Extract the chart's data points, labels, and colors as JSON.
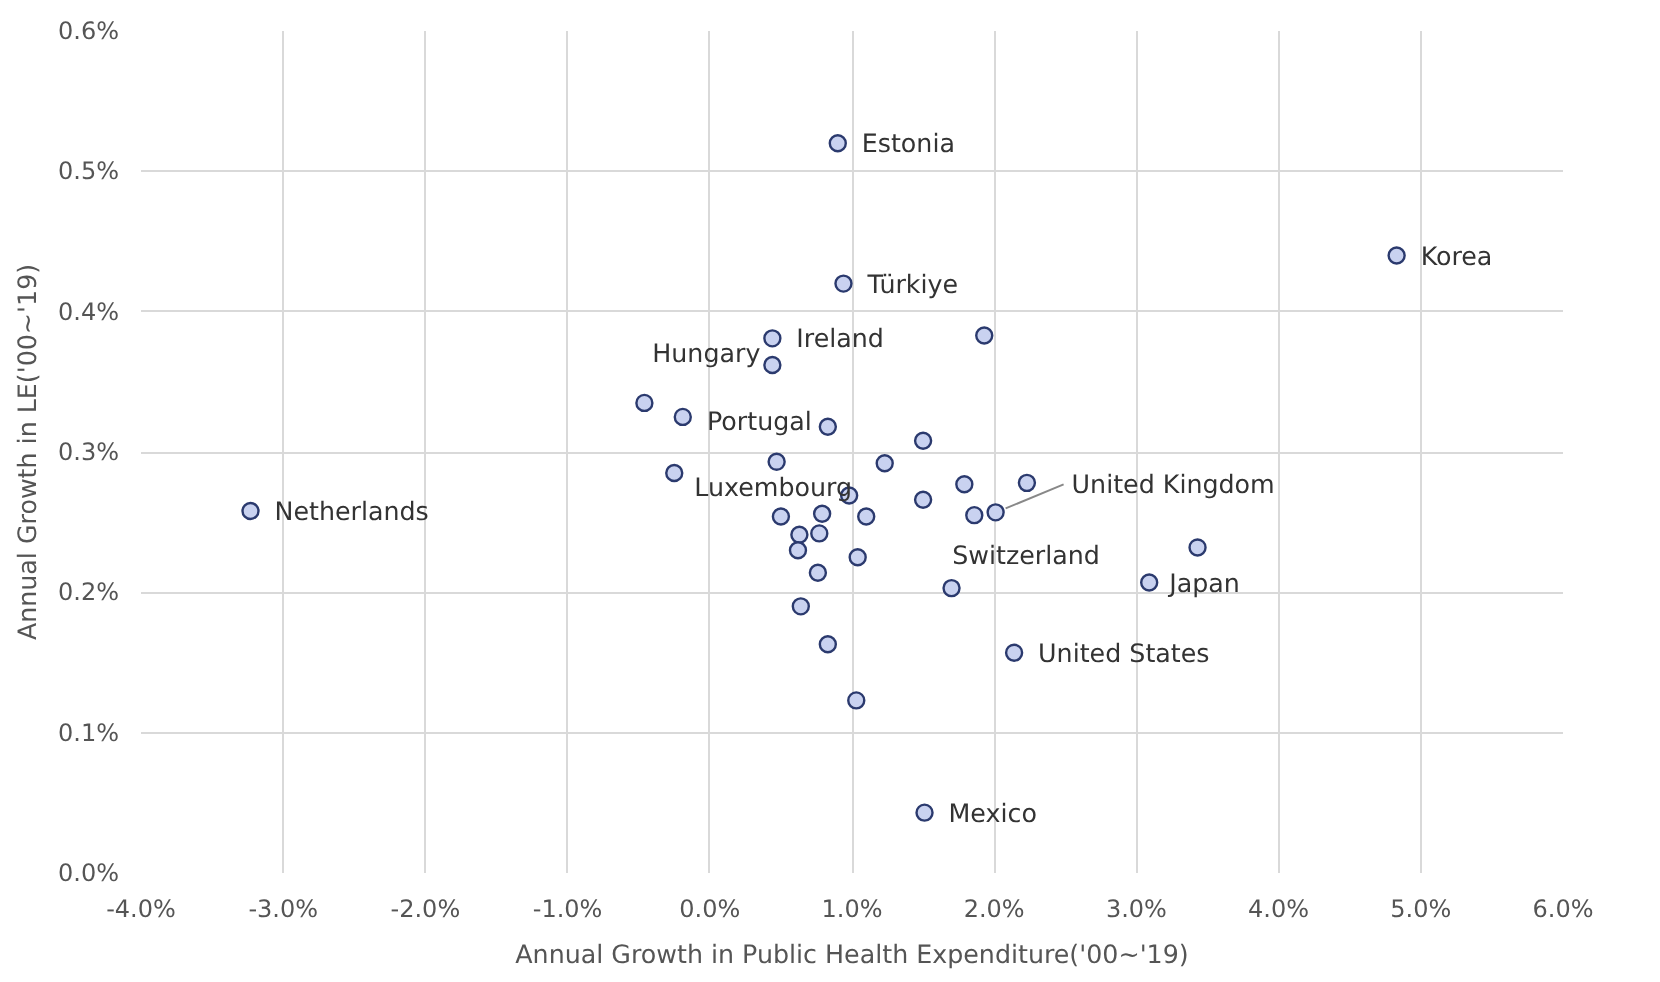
{
  "chart_data": {
    "type": "scatter",
    "xlabel": "Annual Growth in Public Health Expenditure('00~'19)",
    "ylabel": "Annual Growth in LE('00~'19)",
    "series": [
      {
        "color": "#c9d2f0",
        "x": [
          0.9,
          4.83,
          -3.23,
          0.94,
          0.44,
          1.93,
          0.44,
          -0.46,
          -0.19,
          0.83,
          1.5,
          0.47,
          1.23,
          -0.25,
          1.79,
          2.23,
          0.98,
          1.5,
          0.5,
          0.79,
          1.1,
          1.86,
          2.01,
          0.63,
          0.77,
          0.62,
          1.04,
          0.76,
          1.7,
          0.64,
          0.83,
          2.14,
          1.03,
          1.51,
          3.09,
          3.43
        ],
        "values": [
          0.52,
          0.44,
          0.258,
          0.42,
          0.381,
          0.383,
          0.362,
          0.335,
          0.325,
          0.318,
          0.308,
          0.293,
          0.292,
          0.285,
          0.277,
          0.278,
          0.269,
          0.266,
          0.254,
          0.256,
          0.254,
          0.255,
          0.257,
          0.241,
          0.242,
          0.23,
          0.225,
          0.214,
          0.203,
          0.19,
          0.163,
          0.157,
          0.123,
          0.043,
          0.207,
          0.232
        ]
      }
    ],
    "annotations": [
      {
        "text": "Estonia",
        "x": 0.9,
        "y": 0.52
      },
      {
        "text": "Korea",
        "x": 4.83,
        "y": 0.44
      },
      {
        "text": "Netherlands",
        "x": -3.23,
        "y": 0.258
      },
      {
        "text": "Türkiye",
        "x": 0.94,
        "y": 0.42
      },
      {
        "text": "Ireland",
        "x": 0.44,
        "y": 0.381
      },
      {
        "text": "Hungary",
        "x": 0.44,
        "y": 0.362
      },
      {
        "text": "Portugal",
        "x": 0.83,
        "y": 0.318
      },
      {
        "text": "Luxembourg",
        "x": -0.25,
        "y": 0.285
      },
      {
        "text": "United Kingdom",
        "x": 2.01,
        "y": 0.257
      },
      {
        "text": "Switzerland",
        "x": 1.86,
        "y": 0.255
      },
      {
        "text": "Japan",
        "x": 3.09,
        "y": 0.207
      },
      {
        "text": "United States",
        "x": 2.14,
        "y": 0.157
      },
      {
        "text": "Mexico",
        "x": 1.51,
        "y": 0.043
      }
    ],
    "xlim": [
      -4,
      6
    ],
    "ylim": [
      0,
      0.6
    ],
    "xticks": [
      {
        "value": -4,
        "label": "-4.0%"
      },
      {
        "value": -3,
        "label": "-3.0%"
      },
      {
        "value": -2,
        "label": "-2.0%"
      },
      {
        "value": -1,
        "label": "-1.0%"
      },
      {
        "value": 0,
        "label": "0.0%"
      },
      {
        "value": 1,
        "label": "1.0%"
      },
      {
        "value": 2,
        "label": "2.0%"
      },
      {
        "value": 3,
        "label": "3.0%"
      },
      {
        "value": 4,
        "label": "4.0%"
      },
      {
        "value": 5,
        "label": "5.0%"
      },
      {
        "value": 6,
        "label": "6.0%"
      }
    ],
    "yticks": [
      {
        "value": 0,
        "label": "0.0%"
      },
      {
        "value": 0.1,
        "label": "0.1%"
      },
      {
        "value": 0.2,
        "label": "0.2%"
      },
      {
        "value": 0.3,
        "label": "0.3%"
      },
      {
        "value": 0.4,
        "label": "0.4%"
      },
      {
        "value": 0.5,
        "label": "0.5%"
      },
      {
        "value": 0.6,
        "label": "0.6%"
      }
    ],
    "grid": true,
    "marker": "circle"
  }
}
